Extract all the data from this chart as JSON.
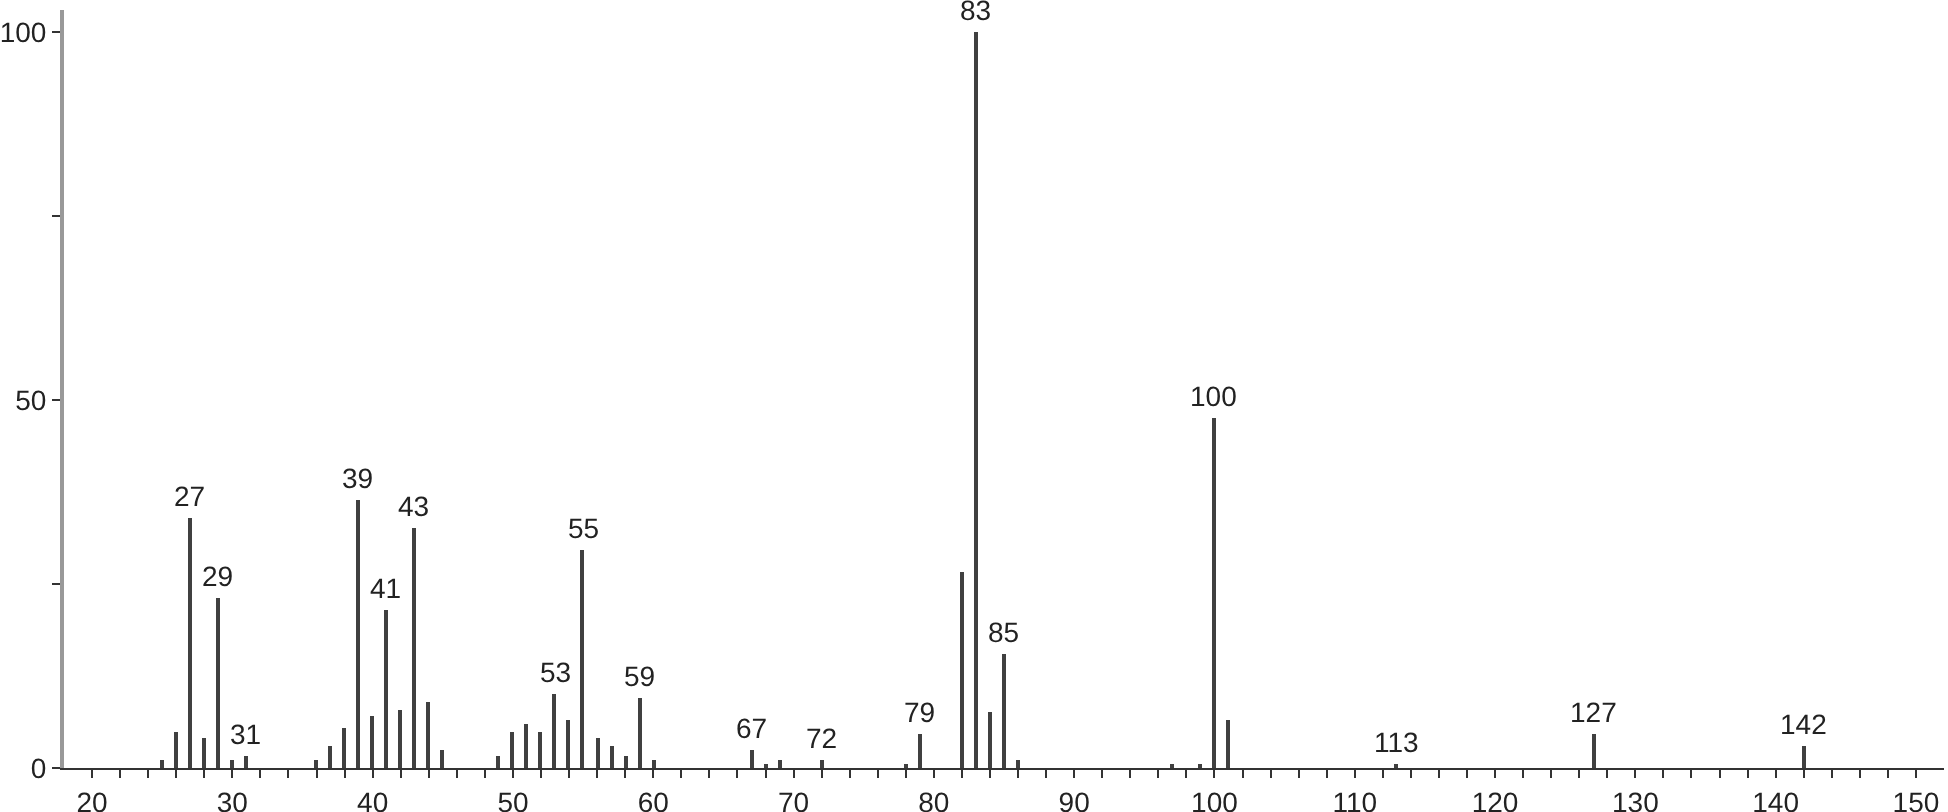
{
  "chart_data": {
    "type": "bar",
    "color": "#404040",
    "x": [
      25,
      26,
      27,
      28,
      29,
      30,
      31,
      36,
      37,
      38,
      39,
      40,
      41,
      42,
      43,
      44,
      45,
      49,
      50,
      51,
      52,
      53,
      54,
      55,
      56,
      57,
      58,
      59,
      60,
      67,
      68,
      69,
      72,
      78,
      79,
      82,
      83,
      84,
      85,
      86,
      97,
      99,
      100,
      101,
      113,
      127,
      142
    ],
    "values": [
      1,
      5,
      34,
      4,
      23,
      1,
      1.5,
      1,
      3,
      5.5,
      36.5,
      7,
      21.5,
      8,
      32.5,
      9,
      2.5,
      1.5,
      5,
      6,
      5,
      10,
      6.5,
      29.5,
      4,
      3,
      1.5,
      9.5,
      1,
      2.5,
      0.5,
      1,
      1,
      0.5,
      4.5,
      26.5,
      100,
      7.5,
      15.5,
      1,
      0.5,
      0.5,
      47.5,
      6.5,
      0.5,
      4.5,
      3
    ],
    "annotations": [
      {
        "text": "27",
        "x": 27,
        "y": 34
      },
      {
        "text": "29",
        "x": 29,
        "y": 23
      },
      {
        "text": "31",
        "x": 31,
        "y": 1.5
      },
      {
        "text": "39",
        "x": 39,
        "y": 36.5
      },
      {
        "text": "41",
        "x": 41,
        "y": 21.5
      },
      {
        "text": "43",
        "x": 43,
        "y": 32.5
      },
      {
        "text": "53",
        "x": 53,
        "y": 10
      },
      {
        "text": "55",
        "x": 55,
        "y": 29.5
      },
      {
        "text": "59",
        "x": 59,
        "y": 9.5
      },
      {
        "text": "67",
        "x": 67,
        "y": 2.5
      },
      {
        "text": "72",
        "x": 72,
        "y": 1
      },
      {
        "text": "79",
        "x": 79,
        "y": 4.5
      },
      {
        "text": "83",
        "x": 83,
        "y": 100
      },
      {
        "text": "85",
        "x": 85,
        "y": 15.5
      },
      {
        "text": "100",
        "x": 100,
        "y": 47.5
      },
      {
        "text": "113",
        "x": 113,
        "y": 0.5
      },
      {
        "text": "127",
        "x": 127,
        "y": 4.5
      },
      {
        "text": "142",
        "x": 142,
        "y": 3
      }
    ],
    "xlim": [
      18,
      152
    ],
    "xticks": [
      20,
      {
        "value": 22,
        "label": null
      },
      {
        "value": 24,
        "label": null
      },
      {
        "value": 26,
        "label": null
      },
      {
        "value": 28,
        "label": null
      },
      30,
      {
        "value": 32,
        "label": null
      },
      {
        "value": 34,
        "label": null
      },
      {
        "value": 36,
        "label": null
      },
      {
        "value": 38,
        "label": null
      },
      40,
      {
        "value": 42,
        "label": null
      },
      {
        "value": 44,
        "label": null
      },
      {
        "value": 46,
        "label": null
      },
      {
        "value": 48,
        "label": null
      },
      50,
      {
        "value": 52,
        "label": null
      },
      {
        "value": 54,
        "label": null
      },
      {
        "value": 56,
        "label": null
      },
      {
        "value": 58,
        "label": null
      },
      60,
      {
        "value": 62,
        "label": null
      },
      {
        "value": 64,
        "label": null
      },
      {
        "value": 66,
        "label": null
      },
      {
        "value": 68,
        "label": null
      },
      70,
      {
        "value": 72,
        "label": null
      },
      {
        "value": 74,
        "label": null
      },
      {
        "value": 76,
        "label": null
      },
      {
        "value": 78,
        "label": null
      },
      80,
      {
        "value": 82,
        "label": null
      },
      {
        "value": 84,
        "label": null
      },
      {
        "value": 86,
        "label": null
      },
      {
        "value": 88,
        "label": null
      },
      90,
      {
        "value": 92,
        "label": null
      },
      {
        "value": 94,
        "label": null
      },
      {
        "value": 96,
        "label": null
      },
      {
        "value": 98,
        "label": null
      },
      100,
      {
        "value": 102,
        "label": null
      },
      {
        "value": 104,
        "label": null
      },
      {
        "value": 106,
        "label": null
      },
      {
        "value": 108,
        "label": null
      },
      110,
      {
        "value": 112,
        "label": null
      },
      {
        "value": 114,
        "label": null
      },
      {
        "value": 116,
        "label": null
      },
      {
        "value": 118,
        "label": null
      },
      120,
      {
        "value": 122,
        "label": null
      },
      {
        "value": 124,
        "label": null
      },
      {
        "value": 126,
        "label": null
      },
      {
        "value": 128,
        "label": null
      },
      130,
      {
        "value": 132,
        "label": null
      },
      {
        "value": 134,
        "label": null
      },
      {
        "value": 136,
        "label": null
      },
      {
        "value": 138,
        "label": null
      },
      140,
      {
        "value": 142,
        "label": null
      },
      {
        "value": 144,
        "label": null
      },
      {
        "value": 146,
        "label": null
      },
      {
        "value": 148,
        "label": null
      },
      150
    ],
    "ylim": [
      0,
      103
    ],
    "yticks": [
      0,
      {
        "value": 25,
        "label": null
      },
      50,
      {
        "value": 75,
        "label": null
      },
      100
    ],
    "grid": false
  }
}
